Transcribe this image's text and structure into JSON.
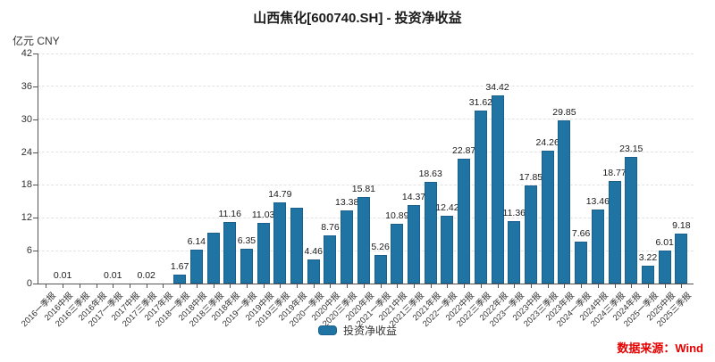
{
  "chart_data": {
    "type": "bar",
    "title": "山西焦化[600740.SH] - 投资净收益",
    "unit_label": "亿元 CNY",
    "legend": "投资净收益",
    "source": "数据来源：Wind",
    "ylim": [
      0,
      42
    ],
    "yticks": [
      0,
      6,
      12,
      18,
      24,
      30,
      36,
      42
    ],
    "grid": "horizontal-dashed",
    "legend_position": "bottom-center",
    "bar_color": "#1F74A4",
    "source_color": "#e60000",
    "categories": [
      "2016一季报",
      "2016中报",
      "2016三季报",
      "2016年报",
      "2017一季报",
      "2017中报",
      "2017三季报",
      "2017年报",
      "2018一季报",
      "2018中报",
      "2018三季报",
      "2018年报",
      "2019一季报",
      "2019中报",
      "2019三季报",
      "2019年报",
      "2020一季报",
      "2020中报",
      "2020三季报",
      "2020年报",
      "2021一季报",
      "2021中报",
      "2021三季报",
      "2021年报",
      "2022一季报",
      "2022中报",
      "2022三季报",
      "2022年报",
      "2023一季报",
      "2023中报",
      "2023三季报",
      "2023年报",
      "2024一季报",
      "2024中报",
      "2024三季报",
      "2024年报",
      "2025一季报",
      "2025中报",
      "2025三季报"
    ],
    "values": [
      0,
      0.01,
      0,
      0,
      0.01,
      0,
      0.02,
      0,
      1.67,
      6.14,
      9.33,
      11.16,
      6.35,
      11.03,
      14.79,
      13.79,
      4.46,
      8.76,
      13.38,
      15.81,
      5.26,
      10.89,
      14.37,
      18.63,
      12.42,
      22.87,
      31.62,
      34.42,
      11.36,
      17.85,
      24.26,
      29.85,
      7.66,
      13.46,
      18.77,
      23.15,
      3.22,
      6.01,
      9.18
    ],
    "value_labels": [
      "",
      "0.01",
      "",
      "",
      "0.01",
      "",
      "0.02",
      "",
      "1.67",
      "6.14",
      "",
      "11.16",
      "6.35",
      "11.03",
      "14.79",
      "",
      "4.46",
      "8.76",
      "13.38",
      "15.81",
      "5.26",
      "10.89",
      "14.37",
      "18.63",
      "12.42",
      "22.87",
      "31.62",
      "34.42",
      "11.36",
      "17.85",
      "24.26",
      "29.85",
      "7.66",
      "13.46",
      "18.77",
      "23.15",
      "3.22",
      "6.01",
      "9.18"
    ]
  }
}
